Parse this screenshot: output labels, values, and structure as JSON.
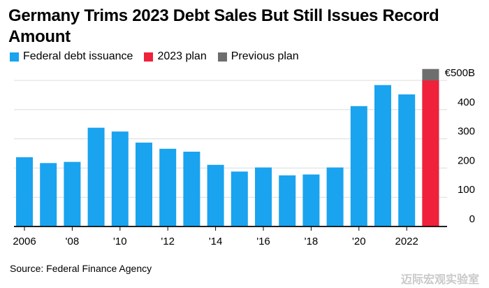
{
  "title": "Germany Trims 2023 Debt Sales But Still Issues Record Amount",
  "source": "Source: Federal Finance Agency",
  "watermark": "迈际宏观实验室",
  "colors": {
    "issuance": "#1aa3ef",
    "plan": "#f0213a",
    "previous": "#6e6e6e",
    "grid": "#dcdcdc"
  },
  "legend": [
    {
      "label": "Federal debt issuance",
      "color": "#1aa3ef"
    },
    {
      "label": "2023 plan",
      "color": "#f0213a"
    },
    {
      "label": "Previous plan",
      "color": "#6e6e6e"
    }
  ],
  "chart_data": {
    "type": "bar",
    "title": "Germany Trims 2023 Debt Sales But Still Issues Record Amount",
    "categories": [
      "2006",
      "2007",
      "2008",
      "2009",
      "2010",
      "2011",
      "2012",
      "2013",
      "2014",
      "2015",
      "2016",
      "2017",
      "2018",
      "2019",
      "2020",
      "2021",
      "2022",
      "2023"
    ],
    "x_tick_labels": [
      {
        "category": "2006",
        "label": "2006"
      },
      {
        "category": "2008",
        "label": "'08"
      },
      {
        "category": "2010",
        "label": "'10"
      },
      {
        "category": "2012",
        "label": "'12"
      },
      {
        "category": "2014",
        "label": "'14"
      },
      {
        "category": "2016",
        "label": "'16"
      },
      {
        "category": "2018",
        "label": "'18"
      },
      {
        "category": "2020",
        "label": "'20"
      },
      {
        "category": "2022",
        "label": "2022"
      }
    ],
    "y_ticks": [
      {
        "value": 0,
        "label": "0"
      },
      {
        "value": 100,
        "label": "100"
      },
      {
        "value": 200,
        "label": "200"
      },
      {
        "value": 300,
        "label": "300"
      },
      {
        "value": 400,
        "label": "400"
      },
      {
        "value": 500,
        "label": "€500B"
      }
    ],
    "ylim": [
      0,
      500
    ],
    "grid": true,
    "series": [
      {
        "name": "Federal debt issuance",
        "values": [
          237,
          217,
          221,
          338,
          325,
          287,
          266,
          256,
          211,
          188,
          202,
          175,
          178,
          202,
          412,
          484,
          452,
          null
        ]
      },
      {
        "name": "2023 plan",
        "values": [
          null,
          null,
          null,
          null,
          null,
          null,
          null,
          null,
          null,
          null,
          null,
          null,
          null,
          null,
          null,
          null,
          null,
          500
        ]
      },
      {
        "name": "Previous plan",
        "values": [
          null,
          null,
          null,
          null,
          null,
          null,
          null,
          null,
          null,
          null,
          null,
          null,
          null,
          null,
          null,
          null,
          null,
          539
        ]
      }
    ]
  }
}
